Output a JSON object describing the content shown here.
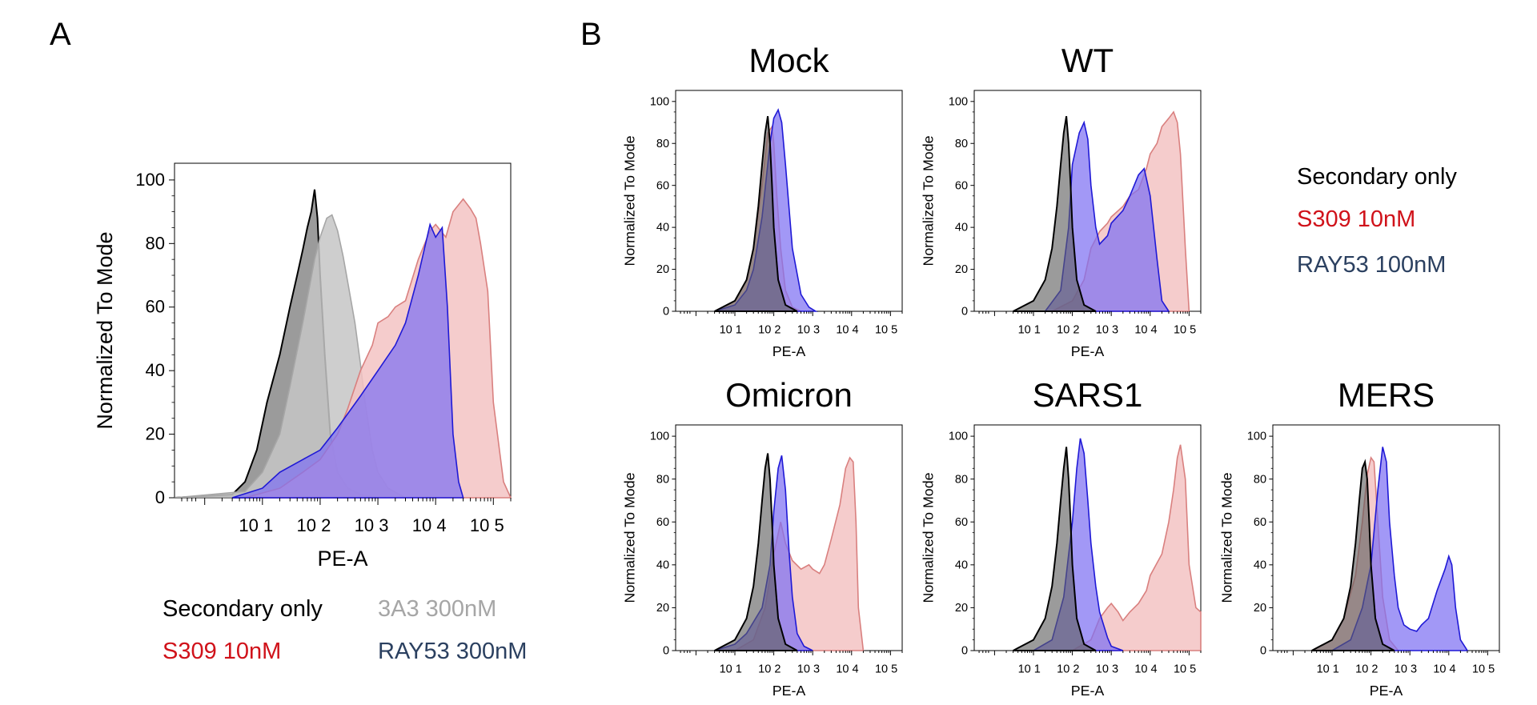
{
  "figure": {
    "panel_labels": [
      "A",
      "B"
    ],
    "colors": {
      "secondary": "#000000",
      "secondary_fill": "#5e5e5e",
      "gray3a3": "#a6a6a6",
      "gray3a3_fill": "#c6c6c6",
      "s309": "#d9807f",
      "s309_fill": "#f3c3c3",
      "ray53": "#1f19d6",
      "ray53_fill": "#7e70f2",
      "legend_red": "#d0121a",
      "legend_navy": "#2b4060"
    },
    "legend_A": [
      "Secondary only",
      "3A3 300nM",
      "S309 10nM",
      "RAY53 300nM"
    ],
    "legend_B": [
      "Secondary only",
      "S309 10nM",
      "RAY53 100nM"
    ]
  },
  "chart_data": [
    {
      "type": "area",
      "panel": "A",
      "title": "",
      "xlabel": "PE-A",
      "ylabel": "Normalized To Mode",
      "xscale": "log",
      "xlim": [
        0.3,
        200000
      ],
      "ylim": [
        0,
        100
      ],
      "xticks": [
        "10 1",
        "10 2",
        "10 3",
        "10 4",
        "10 5"
      ],
      "yticks": [
        0,
        20,
        40,
        60,
        80,
        100
      ],
      "series": [
        {
          "name": "Secondary only",
          "color": "secondary",
          "x": [
            0.3,
            3,
            5,
            8,
            12,
            20,
            30,
            40,
            50,
            60,
            70,
            80,
            90,
            100,
            120,
            150,
            200,
            300,
            500,
            1000
          ],
          "y": [
            0,
            1,
            5,
            15,
            30,
            45,
            60,
            70,
            78,
            85,
            90,
            97,
            88,
            70,
            45,
            20,
            8,
            3,
            1,
            0
          ]
        },
        {
          "name": "3A3 300nM",
          "color": "gray3a3",
          "x": [
            0.3,
            5,
            10,
            20,
            30,
            50,
            80,
            100,
            130,
            160,
            200,
            250,
            300,
            400,
            500,
            600,
            800,
            1000,
            1500,
            3000
          ],
          "y": [
            0,
            2,
            8,
            20,
            35,
            55,
            75,
            82,
            88,
            89,
            84,
            76,
            68,
            55,
            42,
            30,
            15,
            8,
            3,
            0
          ]
        },
        {
          "name": "S309 10nM",
          "color": "s309",
          "x": [
            5,
            20,
            50,
            100,
            200,
            300,
            500,
            800,
            1000,
            1500,
            2000,
            3000,
            5000,
            8000,
            10000,
            15000,
            20000,
            30000,
            40000,
            50000,
            60000,
            80000,
            100000,
            150000,
            200000
          ],
          "y": [
            0,
            3,
            8,
            12,
            20,
            28,
            40,
            48,
            55,
            57,
            60,
            62,
            75,
            84,
            86,
            82,
            90,
            94,
            91,
            88,
            80,
            65,
            30,
            5,
            0
          ]
        },
        {
          "name": "RAY53 300nM",
          "color": "ray53",
          "x": [
            3,
            10,
            20,
            50,
            100,
            200,
            500,
            1000,
            2000,
            3000,
            5000,
            8000,
            10000,
            13000,
            16000,
            20000,
            25000,
            30000
          ],
          "y": [
            0,
            3,
            8,
            12,
            15,
            22,
            32,
            40,
            48,
            55,
            70,
            86,
            82,
            85,
            60,
            20,
            5,
            0
          ]
        }
      ]
    },
    {
      "type": "area",
      "panel": "B",
      "title": "Mock",
      "xlabel": "PE-A",
      "ylabel": "Normalized To Mode",
      "xscale": "log",
      "xlim": [
        0.3,
        200000
      ],
      "ylim": [
        0,
        100
      ],
      "xticks": [
        "10 1",
        "10 2",
        "10 3",
        "10 4",
        "10 5"
      ],
      "yticks": [
        0,
        20,
        40,
        60,
        80,
        100
      ],
      "series": [
        {
          "name": "S309 10nM",
          "color": "s309",
          "x": [
            3,
            10,
            20,
            30,
            50,
            70,
            90,
            100,
            120,
            150,
            200,
            300,
            500
          ],
          "y": [
            0,
            5,
            15,
            30,
            60,
            85,
            88,
            80,
            55,
            30,
            10,
            2,
            0
          ]
        },
        {
          "name": "RAY53 100nM",
          "color": "ray53",
          "x": [
            3,
            10,
            20,
            30,
            50,
            80,
            100,
            130,
            160,
            200,
            300,
            500,
            800,
            1200
          ],
          "y": [
            0,
            3,
            10,
            20,
            45,
            80,
            92,
            96,
            90,
            70,
            30,
            8,
            2,
            0
          ]
        },
        {
          "name": "Secondary only",
          "color": "secondary",
          "x": [
            3,
            10,
            20,
            30,
            40,
            50,
            60,
            70,
            80,
            90,
            100,
            130,
            200,
            400
          ],
          "y": [
            0,
            5,
            15,
            30,
            50,
            70,
            85,
            93,
            80,
            60,
            40,
            15,
            3,
            0
          ]
        }
      ]
    },
    {
      "type": "area",
      "panel": "B",
      "title": "WT",
      "xlabel": "PE-A",
      "ylabel": "Normalized To Mode",
      "xscale": "log",
      "xlim": [
        0.3,
        200000
      ],
      "ylim": [
        0,
        100
      ],
      "xticks": [
        "10 1",
        "10 2",
        "10 3",
        "10 4",
        "10 5"
      ],
      "yticks": [
        0,
        20,
        40,
        60,
        80,
        100
      ],
      "series": [
        {
          "name": "S309 10nM",
          "color": "s309",
          "x": [
            30,
            100,
            200,
            300,
            500,
            800,
            1000,
            2000,
            3000,
            5000,
            8000,
            10000,
            15000,
            20000,
            30000,
            40000,
            50000,
            60000,
            80000,
            100000
          ],
          "y": [
            0,
            5,
            15,
            30,
            38,
            42,
            45,
            50,
            55,
            58,
            68,
            75,
            80,
            88,
            92,
            95,
            90,
            75,
            30,
            0
          ]
        },
        {
          "name": "RAY53 100nM",
          "color": "ray53",
          "x": [
            20,
            50,
            80,
            100,
            150,
            200,
            250,
            300,
            400,
            500,
            800,
            1000,
            2000,
            3000,
            5000,
            7000,
            10000,
            15000,
            20000,
            30000
          ],
          "y": [
            0,
            10,
            40,
            70,
            85,
            90,
            82,
            60,
            40,
            32,
            36,
            42,
            48,
            55,
            65,
            68,
            55,
            25,
            5,
            0
          ]
        },
        {
          "name": "Secondary only",
          "color": "secondary",
          "x": [
            3,
            10,
            20,
            30,
            40,
            50,
            60,
            70,
            80,
            90,
            100,
            130,
            200,
            400
          ],
          "y": [
            0,
            5,
            15,
            30,
            50,
            70,
            85,
            93,
            80,
            60,
            40,
            15,
            3,
            0
          ]
        }
      ]
    },
    {
      "type": "area",
      "panel": "B",
      "title": "Omicron",
      "xlabel": "PE-A",
      "ylabel": "Normalized To Mode",
      "xscale": "log",
      "xlim": [
        0.3,
        200000
      ],
      "ylim": [
        0,
        100
      ],
      "xticks": [
        "10 1",
        "10 2",
        "10 3",
        "10 4",
        "10 5"
      ],
      "yticks": [
        0,
        20,
        40,
        60,
        80,
        100
      ],
      "series": [
        {
          "name": "S309 10nM",
          "color": "s309",
          "x": [
            10,
            30,
            60,
            100,
            150,
            200,
            300,
            500,
            800,
            1000,
            1500,
            2000,
            3000,
            5000,
            7000,
            9000,
            11000,
            13000,
            15000,
            20000
          ],
          "y": [
            0,
            5,
            20,
            45,
            60,
            50,
            42,
            38,
            40,
            38,
            36,
            40,
            52,
            68,
            85,
            90,
            88,
            60,
            20,
            0
          ]
        },
        {
          "name": "RAY53 100nM",
          "color": "ray53",
          "x": [
            3,
            10,
            20,
            50,
            80,
            100,
            130,
            160,
            200,
            250,
            300,
            400,
            600,
            1000
          ],
          "y": [
            0,
            3,
            8,
            20,
            40,
            65,
            85,
            91,
            75,
            45,
            25,
            8,
            2,
            0
          ]
        },
        {
          "name": "Secondary only",
          "color": "secondary",
          "x": [
            3,
            10,
            20,
            30,
            40,
            50,
            60,
            70,
            80,
            90,
            100,
            130,
            200,
            400
          ],
          "y": [
            0,
            5,
            15,
            30,
            50,
            70,
            85,
            92,
            80,
            60,
            40,
            15,
            3,
            0
          ]
        }
      ]
    },
    {
      "type": "area",
      "panel": "B",
      "title": "SARS1",
      "xlabel": "PE-A",
      "ylabel": "Normalized To Mode",
      "xscale": "log",
      "xlim": [
        0.3,
        200000
      ],
      "ylim": [
        0,
        100
      ],
      "xticks": [
        "10 1",
        "10 2",
        "10 3",
        "10 4",
        "10 5"
      ],
      "yticks": [
        0,
        20,
        40,
        60,
        80,
        100
      ],
      "series": [
        {
          "name": "S309 10nM",
          "color": "s309",
          "x": [
            100,
            300,
            500,
            800,
            1000,
            1500,
            2000,
            3000,
            5000,
            8000,
            10000,
            20000,
            30000,
            40000,
            50000,
            60000,
            80000,
            100000,
            150000,
            200000
          ],
          "y": [
            0,
            5,
            15,
            20,
            22,
            18,
            14,
            18,
            22,
            28,
            35,
            45,
            60,
            75,
            90,
            96,
            80,
            40,
            20,
            18
          ]
        },
        {
          "name": "RAY53 100nM",
          "color": "ray53",
          "x": [
            10,
            30,
            60,
            100,
            130,
            160,
            200,
            250,
            300,
            400,
            500,
            800,
            1000,
            2000
          ],
          "y": [
            0,
            5,
            25,
            60,
            85,
            99,
            92,
            70,
            50,
            30,
            18,
            6,
            2,
            0
          ]
        },
        {
          "name": "Secondary only",
          "color": "secondary",
          "x": [
            3,
            10,
            20,
            30,
            40,
            50,
            60,
            70,
            80,
            90,
            100,
            130,
            200,
            400
          ],
          "y": [
            0,
            5,
            15,
            30,
            50,
            70,
            85,
            95,
            80,
            60,
            40,
            15,
            3,
            0
          ]
        }
      ]
    },
    {
      "type": "area",
      "panel": "B",
      "title": "MERS",
      "xlabel": "PE-A",
      "ylabel": "Normalized To Mode",
      "xscale": "log",
      "xlim": [
        0.3,
        200000
      ],
      "ylim": [
        0,
        100
      ],
      "xticks": [
        "10 1",
        "10 2",
        "10 3",
        "10 4",
        "10 5"
      ],
      "yticks": [
        0,
        20,
        40,
        60,
        80,
        100
      ],
      "series": [
        {
          "name": "S309 10nM",
          "color": "s309",
          "x": [
            3,
            10,
            20,
            40,
            60,
            80,
            100,
            120,
            150,
            200,
            300,
            500
          ],
          "y": [
            0,
            5,
            15,
            35,
            60,
            82,
            90,
            88,
            60,
            25,
            5,
            0
          ]
        },
        {
          "name": "RAY53 100nM",
          "color": "ray53",
          "x": [
            10,
            30,
            60,
            100,
            150,
            200,
            250,
            300,
            400,
            500,
            700,
            1000,
            1500,
            2000,
            3000,
            5000,
            8000,
            10000,
            12000,
            15000,
            20000,
            30000
          ],
          "y": [
            0,
            5,
            20,
            40,
            75,
            95,
            88,
            60,
            35,
            20,
            12,
            10,
            9,
            12,
            15,
            28,
            38,
            44,
            40,
            20,
            5,
            0
          ]
        },
        {
          "name": "Secondary only",
          "color": "secondary",
          "x": [
            3,
            10,
            20,
            30,
            40,
            50,
            60,
            70,
            80,
            90,
            100,
            130,
            200,
            400
          ],
          "y": [
            0,
            5,
            15,
            30,
            50,
            70,
            85,
            88,
            80,
            60,
            40,
            15,
            3,
            0
          ]
        }
      ]
    }
  ]
}
